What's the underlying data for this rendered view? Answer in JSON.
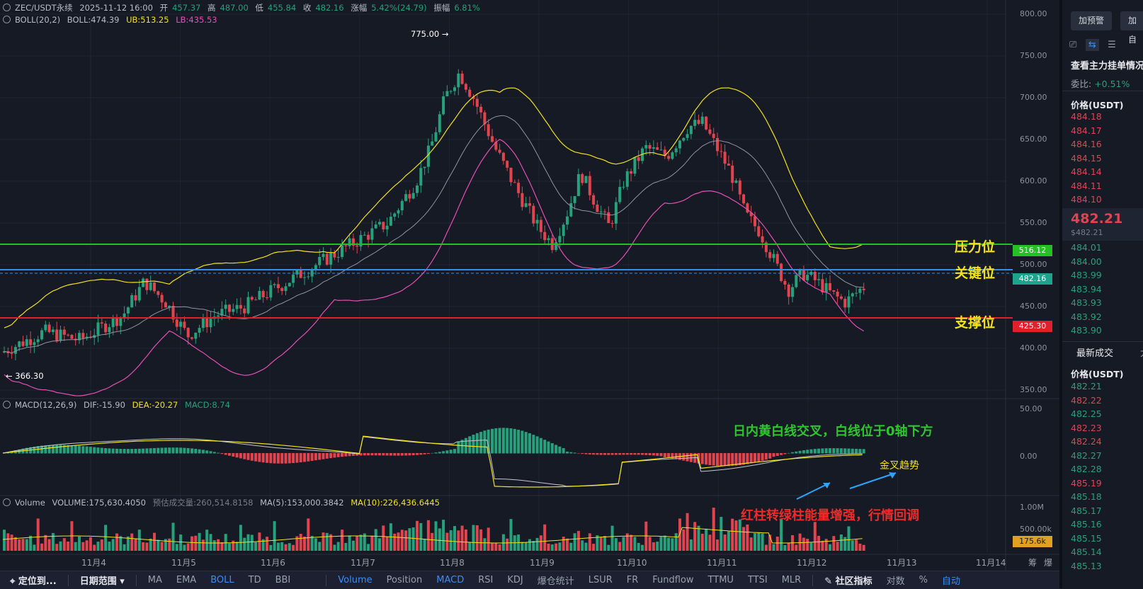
{
  "header": {
    "symbol": "ZEC/USDT永续",
    "datetime": "2025-11-12 16:00",
    "open_label": "开",
    "open": "457.37",
    "high_label": "高",
    "high": "487.00",
    "low_label": "低",
    "low": "455.84",
    "close_label": "收",
    "close": "482.16",
    "change_label": "涨幅",
    "change": "5.42%(24.79)",
    "amplitude_label": "振幅",
    "amplitude": "6.81%"
  },
  "boll": {
    "name": "BOLL(20,2)",
    "mid": "BOLL:474.39",
    "ub": "UB:513.25",
    "lb": "LB:435.53"
  },
  "macd": {
    "name": "MACD(12,26,9)",
    "dif": "DIF:-15.90",
    "dea": "DEA:-20.27",
    "macd": "MACD:8.74"
  },
  "volume": {
    "name": "Volume",
    "vol": "VOLUME:175,630.4050",
    "est": "预估成交量:260,514.8158",
    "ma5": "MA(5):153,000.3842",
    "ma10": "MA(10):226,436.6445",
    "last": "175.6k"
  },
  "y_axis": {
    "ticks": [
      "800.00",
      "750.00",
      "700.00",
      "650.00",
      "600.00",
      "550.00",
      "500.00",
      "450.00",
      "400.00",
      "350.00"
    ],
    "macd_ticks": [
      "50.00",
      "0.00"
    ],
    "vol_ticks": [
      "1.00M",
      "500.00k"
    ]
  },
  "levels": {
    "resistance": {
      "label": "压力位",
      "price": "516.12",
      "color": "#26c026"
    },
    "key": {
      "label": "关键位",
      "price": "482.16",
      "color": "#2f8ef0"
    },
    "support": {
      "label": "支撑位",
      "price": "425.30",
      "color": "#e0202a"
    }
  },
  "extremes": {
    "high": "775.00 →",
    "low": "← 366.30"
  },
  "annotations": {
    "macd_note": "日内黄白线交叉，白线位于0轴下方",
    "golden_cross": "金叉趋势",
    "volume_note": "红柱转绿柱能量增强，行情回调"
  },
  "x_axis": {
    "dates": [
      "11月4",
      "11月5",
      "11月6",
      "11月7",
      "11月8",
      "11月9",
      "11月10",
      "11月11",
      "11月12",
      "11月13",
      "11月14"
    ],
    "right": [
      "筹",
      "爆"
    ]
  },
  "toolbar": {
    "locate": "定位到...",
    "date_range": "日期范围",
    "main": [
      "MA",
      "EMA",
      "BOLL",
      "TD",
      "BBI"
    ],
    "sub": [
      "Volume",
      "Position",
      "MACD",
      "RSI",
      "KDJ",
      "爆仓统计",
      "LSUR",
      "FR",
      "Fundflow",
      "TTMU",
      "TTSI",
      "MLR"
    ],
    "community": "社区指标",
    "log": "对数",
    "percent": "%",
    "auto": "自动"
  },
  "side": {
    "alert_btn": "加预警",
    "add_btn": "加自",
    "title": "查看主力挂单情况",
    "ratio_label": "委比:",
    "ratio": "+0.51%",
    "price_header": "价格(USDT)",
    "asks": [
      "484.18",
      "484.17",
      "484.16",
      "484.15",
      "484.14",
      "484.11",
      "484.10"
    ],
    "last_price": "482.21",
    "last_price_sub": "$482.21",
    "bids": [
      "484.01",
      "484.00",
      "483.99",
      "483.94",
      "483.93",
      "483.92",
      "483.90"
    ],
    "trades_tab": "最新成交",
    "trades_tab2": "大",
    "trades_header": "价格(USDT)",
    "trades": [
      "482.21",
      "482.22",
      "482.25",
      "482.23",
      "482.24",
      "482.27",
      "482.28",
      "485.19",
      "485.18",
      "485.17",
      "485.16",
      "485.15",
      "485.14",
      "485.13"
    ]
  }
}
